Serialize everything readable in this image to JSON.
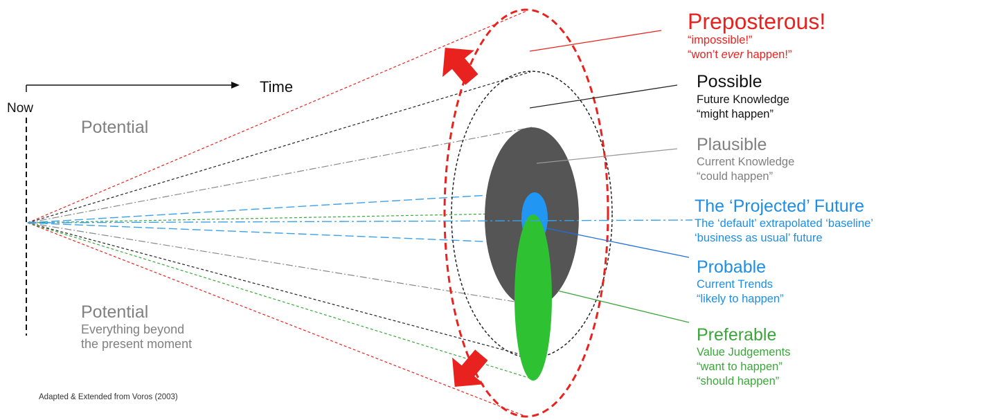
{
  "colors": {
    "red": "#e8231f",
    "black": "#111111",
    "gray_text": "#808080",
    "gray_ellipse": "#555555",
    "blue": "#1d8ee3",
    "blue_ellipse": "#2196f3",
    "green": "#3aa63a",
    "green_ellipse": "#2ec233"
  },
  "axis": {
    "now_label": "Now",
    "time_label": "Time"
  },
  "left": {
    "potential_top": "Potential",
    "potential_bottom": "Potential",
    "potential_desc_1": "Everything beyond",
    "potential_desc_2": "the present moment"
  },
  "cones": [
    {
      "name": "Preposterous!",
      "lines": [
        "“impossible!”",
        "“won’t ever happen!”"
      ],
      "color": "red"
    },
    {
      "name": "Possible",
      "lines": [
        "Future Knowledge",
        "“might happen”"
      ],
      "color": "black"
    },
    {
      "name": "Plausible",
      "lines": [
        "Current Knowledge",
        "“could happen”"
      ],
      "color": "gray"
    },
    {
      "name": "The ‘Projected’ Future",
      "lines": [
        "The ‘default’ extrapolated ‘baseline’",
        "‘business as usual’ future"
      ],
      "color": "blue"
    },
    {
      "name": "Probable",
      "lines": [
        "Current Trends",
        "“likely to happen”"
      ],
      "color": "blue"
    },
    {
      "name": "Preferable",
      "lines": [
        "Value Judgements",
        "“want to happen”",
        "“should happen”"
      ],
      "color": "green"
    }
  ],
  "preposterous_line2_prefix": "“won’t ",
  "preposterous_line2_em": "ever",
  "preposterous_line2_suffix": " happen!”",
  "credit": "Adapted & Extended from Voros (2003)"
}
